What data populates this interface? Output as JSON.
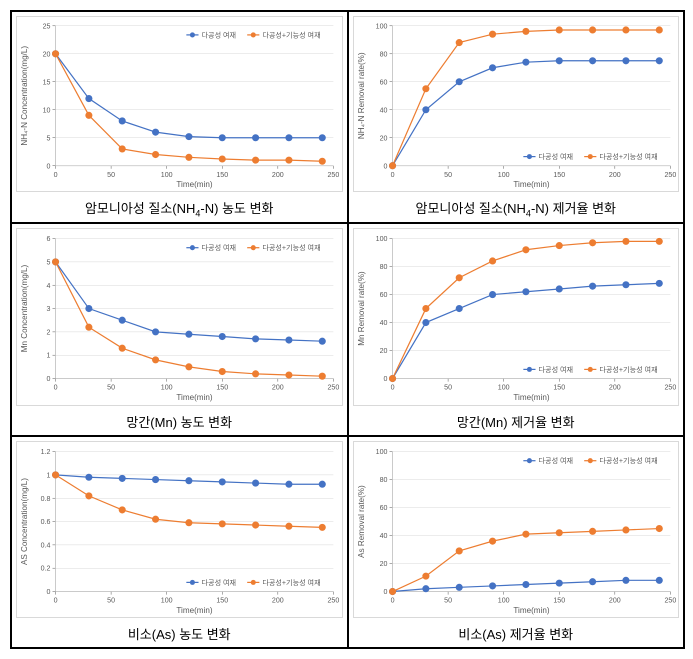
{
  "global": {
    "xlabel": "Time(min)",
    "xlim": [
      0,
      250
    ],
    "xtick_step": 50,
    "axis_fontsize": 8,
    "tick_fontsize": 7,
    "legend_fontsize": 7,
    "background_color": "#ffffff",
    "grid_color": "#d9d9d9",
    "plot_border_color": "#bfbfbf",
    "series_a_color": "#4472c4",
    "series_b_color": "#ed7d31",
    "series_a_label": "다공성 여재",
    "series_b_label": "다공성+기능성 여재",
    "marker_size": 3,
    "line_width": 1.2
  },
  "panels": [
    {
      "caption_html": "암모니아성 질소(NH<sub>4</sub>-N) 농도 변화",
      "ylabel": "NH₄-N Concentration(mg/L)",
      "ylim": [
        0,
        25
      ],
      "ytick_step": 5,
      "legend_pos": "top-right",
      "x": [
        0,
        30,
        60,
        90,
        120,
        150,
        180,
        210,
        240
      ],
      "ya": [
        20,
        12,
        8,
        6,
        5.2,
        5,
        5,
        5,
        5
      ],
      "yb": [
        20,
        9,
        3,
        2,
        1.5,
        1.2,
        1,
        1,
        0.8
      ]
    },
    {
      "caption_html": "암모니아성 질소(NH<sub>4</sub>-N) 제거율 변화",
      "ylabel": "NH₄-N Removal rate(%)",
      "ylim": [
        0,
        100
      ],
      "ytick_step": 20,
      "legend_pos": "bottom-right",
      "x": [
        0,
        30,
        60,
        90,
        120,
        150,
        180,
        210,
        240
      ],
      "ya": [
        0,
        40,
        60,
        70,
        74,
        75,
        75,
        75,
        75
      ],
      "yb": [
        0,
        55,
        88,
        94,
        96,
        97,
        97,
        97,
        97
      ]
    },
    {
      "caption_html": "망간(Mn) 농도 변화",
      "ylabel": "Mn Concentration(mg/L)",
      "ylim": [
        0,
        6
      ],
      "ytick_step": 1,
      "legend_pos": "top-right",
      "x": [
        0,
        30,
        60,
        90,
        120,
        150,
        180,
        210,
        240
      ],
      "ya": [
        5,
        3,
        2.5,
        2,
        1.9,
        1.8,
        1.7,
        1.65,
        1.6
      ],
      "yb": [
        5,
        2.2,
        1.3,
        0.8,
        0.5,
        0.3,
        0.2,
        0.15,
        0.1
      ]
    },
    {
      "caption_html": "망간(Mn) 제거율 변화",
      "ylabel": "Mn Removal rate(%)",
      "ylim": [
        0,
        100
      ],
      "ytick_step": 20,
      "legend_pos": "bottom-right",
      "x": [
        0,
        30,
        60,
        90,
        120,
        150,
        180,
        210,
        240
      ],
      "ya": [
        0,
        40,
        50,
        60,
        62,
        64,
        66,
        67,
        68
      ],
      "yb": [
        0,
        50,
        72,
        84,
        92,
        95,
        97,
        98,
        98
      ]
    },
    {
      "caption_html": "비소(As) 농도 변화",
      "ylabel": "AS Concentration(mg/L)",
      "ylim": [
        0,
        1.2
      ],
      "ytick_step": 0.2,
      "legend_pos": "bottom-right",
      "x": [
        0,
        30,
        60,
        90,
        120,
        150,
        180,
        210,
        240
      ],
      "ya": [
        1,
        0.98,
        0.97,
        0.96,
        0.95,
        0.94,
        0.93,
        0.92,
        0.92
      ],
      "yb": [
        1,
        0.82,
        0.7,
        0.62,
        0.59,
        0.58,
        0.57,
        0.56,
        0.55
      ]
    },
    {
      "caption_html": "비소(As) 제거율 변화",
      "ylabel": "As Removal rate(%)",
      "ylim": [
        0,
        100
      ],
      "ytick_step": 20,
      "legend_pos": "top-right",
      "x": [
        0,
        30,
        60,
        90,
        120,
        150,
        180,
        210,
        240
      ],
      "ya": [
        0,
        2,
        3,
        4,
        5,
        6,
        7,
        8,
        8
      ],
      "yb": [
        0,
        11,
        29,
        36,
        41,
        42,
        43,
        44,
        45
      ]
    }
  ]
}
